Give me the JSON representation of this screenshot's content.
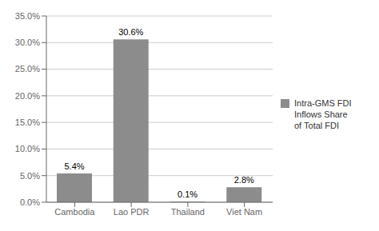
{
  "chart_data": {
    "type": "bar",
    "categories": [
      "Cambodia",
      "Lao PDR",
      "Thailand",
      "Viet Nam"
    ],
    "series": [
      {
        "name": "Intra-GMS FDI\nInflows Share\nof Total FDI",
        "color": "#8c8c8c",
        "values": [
          5.4,
          30.6,
          0.1,
          2.8
        ],
        "value_labels": [
          "5.4%",
          "30.6%",
          "0.1%",
          "2.8%"
        ]
      }
    ],
    "ylim": [
      0,
      35
    ],
    "yticks": [
      {
        "value": 0,
        "label": "0.0%"
      },
      {
        "value": 5,
        "label": "5.0%"
      },
      {
        "value": 10,
        "label": "10.0%"
      },
      {
        "value": 15,
        "label": "15.0%"
      },
      {
        "value": 20,
        "label": "20.0%"
      },
      {
        "value": 25,
        "label": "25.0%"
      },
      {
        "value": 30,
        "label": "30.0%"
      },
      {
        "value": 35,
        "label": "35.0%"
      }
    ],
    "grid": true,
    "legend": "right",
    "data_labels": true
  }
}
